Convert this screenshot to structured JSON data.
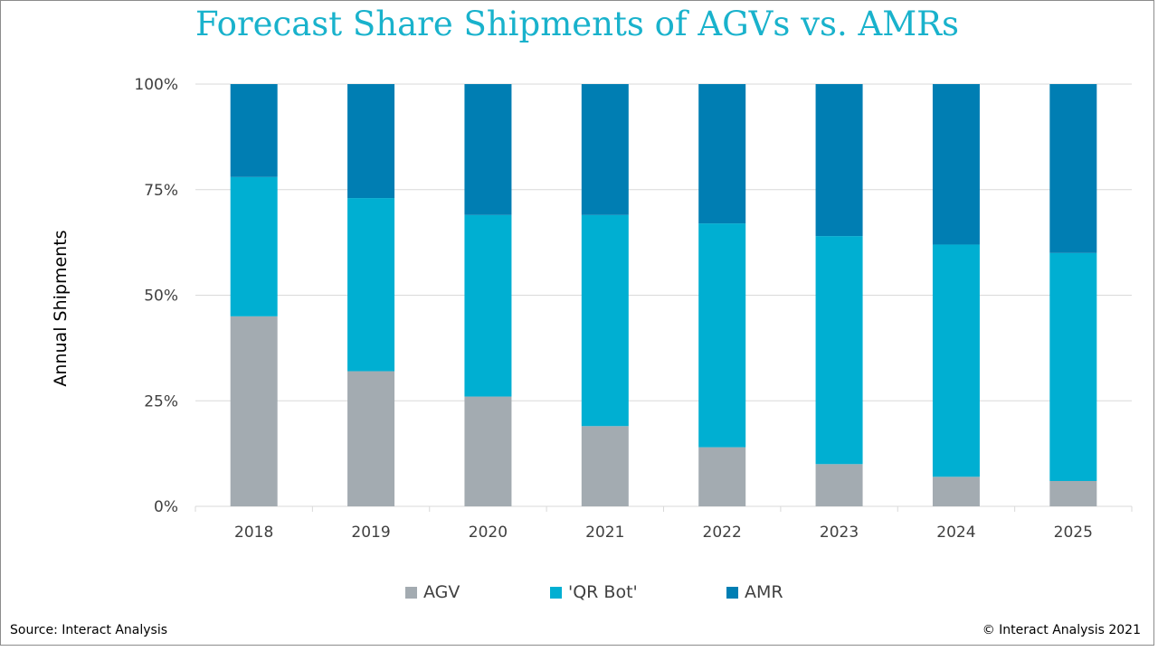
{
  "chart_data": {
    "type": "bar",
    "stacked": true,
    "title": "Forecast Share Shipments of AGVs vs. AMRs",
    "xlabel": "",
    "ylabel": "Annual Shipments",
    "ylim": [
      0,
      100
    ],
    "y_ticks": [
      0,
      25,
      50,
      75,
      100
    ],
    "y_tick_labels": [
      "0%",
      "25%",
      "50%",
      "75%",
      "100%"
    ],
    "categories": [
      "2018",
      "2019",
      "2020",
      "2021",
      "2022",
      "2023",
      "2024",
      "2025"
    ],
    "grid": true,
    "legend_position": "bottom-center",
    "series": [
      {
        "name": "AGV",
        "color": "#a3abb1",
        "values": [
          45,
          32,
          26,
          19,
          14,
          10,
          7,
          6
        ]
      },
      {
        "name": "'QR Bot'",
        "color": "#00afd2",
        "values": [
          33,
          41,
          43,
          50,
          53,
          54,
          55,
          54
        ]
      },
      {
        "name": "AMR",
        "color": "#007eb3",
        "values": [
          22,
          27,
          31,
          31,
          33,
          36,
          38,
          40
        ]
      }
    ]
  },
  "footer": {
    "source": "Source: Interact Analysis",
    "copyright": "© Interact Analysis 2021"
  }
}
